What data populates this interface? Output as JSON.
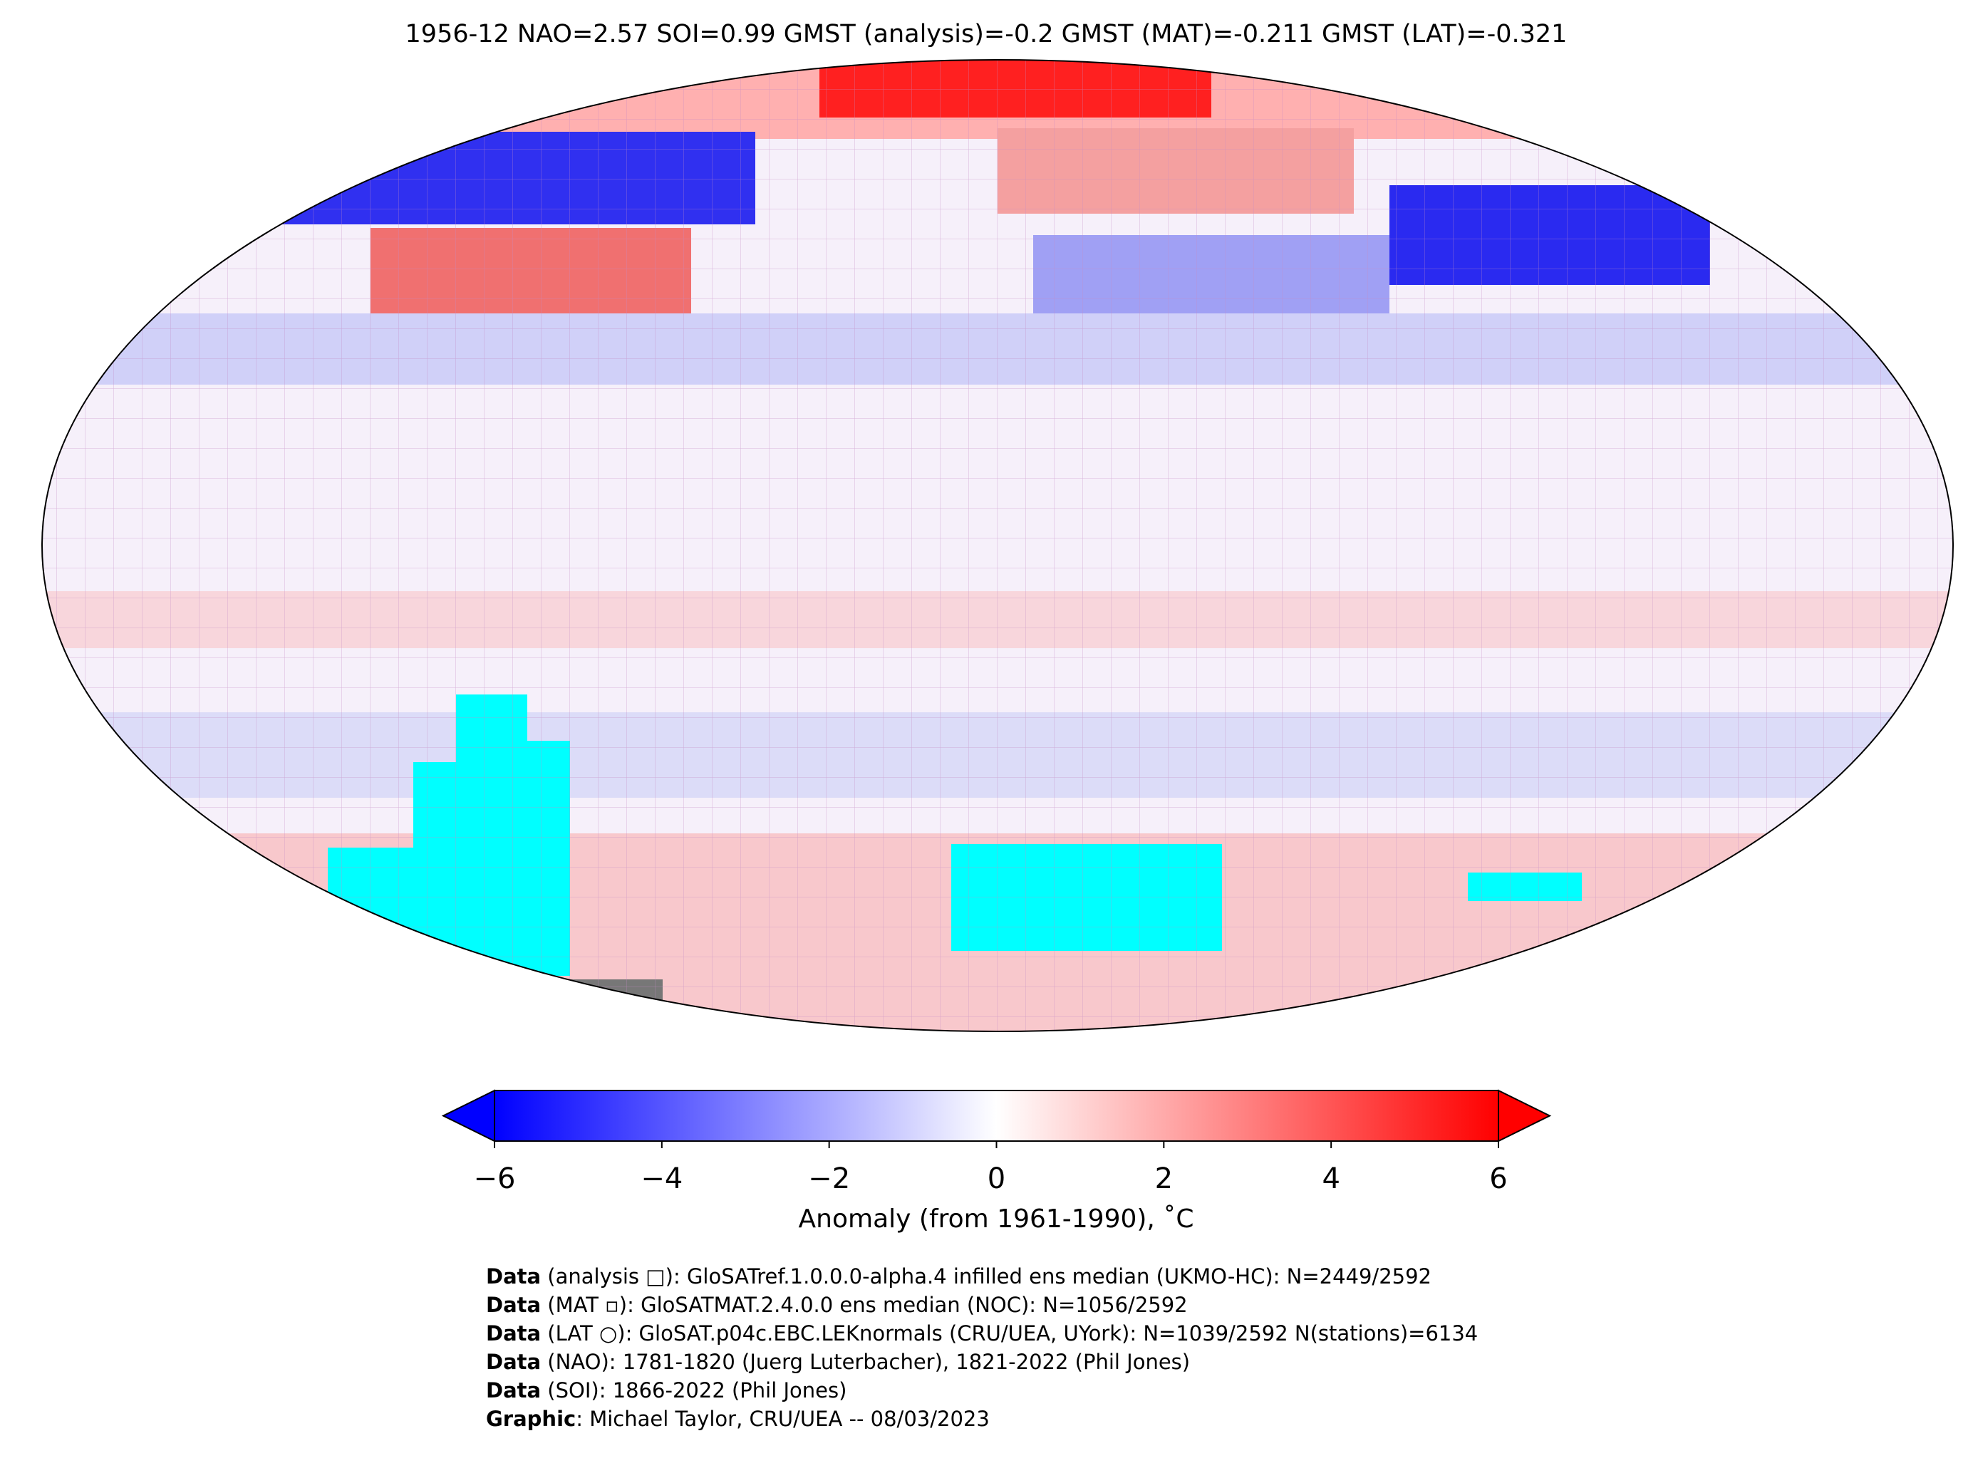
{
  "title": "1956-12 NAO=2.57 SOI=0.99 GMST (analysis)=-0.2 GMST (MAT)=-0.211 GMST (LAT)=-0.321",
  "colorbar": {
    "label": "Anomaly (from 1961-1990), ˚C",
    "lim": [
      -6,
      6
    ],
    "colors": [
      "#0000ff",
      "#ffffff",
      "#ff0000"
    ],
    "ticks": [
      {
        "value": -6,
        "label": "−6"
      },
      {
        "value": -4,
        "label": "−4"
      },
      {
        "value": -2,
        "label": "−2"
      },
      0,
      2,
      4,
      6
    ]
  },
  "footer": [
    {
      "bold": "Data",
      "text": " (analysis □): GloSATref.1.0.0.0-alpha.4 infilled ens median (UKMO-HC): N=2449/2592"
    },
    {
      "bold": "Data",
      "text": " (MAT ▫): GloSATMAT.2.4.0.0 ens median (NOC): N=1056/2592"
    },
    {
      "bold": "Data",
      "text": " (LAT ○): GloSAT.p04c.EBC.LEKnormals (CRU/UEA, UYork): N=1039/2592 N(stations)=6134"
    },
    {
      "bold": "Data",
      "text": " (NAO): 1781-1820 (Juerg Luterbacher), 1821-2022 (Phil Jones)"
    },
    {
      "bold": "Data",
      "text": " (SOI): 1866-2022 (Phil Jones)"
    },
    {
      "bold": "Graphic",
      "text": ": Michael Taylor, CRU/UEA -- 08/03/2023"
    }
  ]
}
